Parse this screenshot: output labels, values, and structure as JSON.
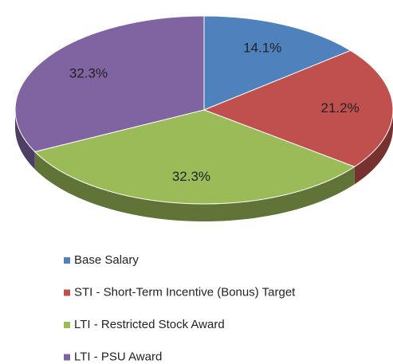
{
  "chart_data": {
    "type": "pie",
    "categories": [
      "Base Salary",
      "STI - Short-Term Incentive (Bonus) Target",
      "LTI - Restricted Stock Award",
      "LTI - PSU Award"
    ],
    "values": [
      14.1,
      21.2,
      32.3,
      32.3
    ],
    "value_labels": [
      "14.1%",
      "21.2%",
      "32.3%",
      "32.3%"
    ],
    "colors": [
      "#4f81bd",
      "#c0504d",
      "#9bbb59",
      "#8064a2"
    ],
    "legend": "bottom"
  }
}
